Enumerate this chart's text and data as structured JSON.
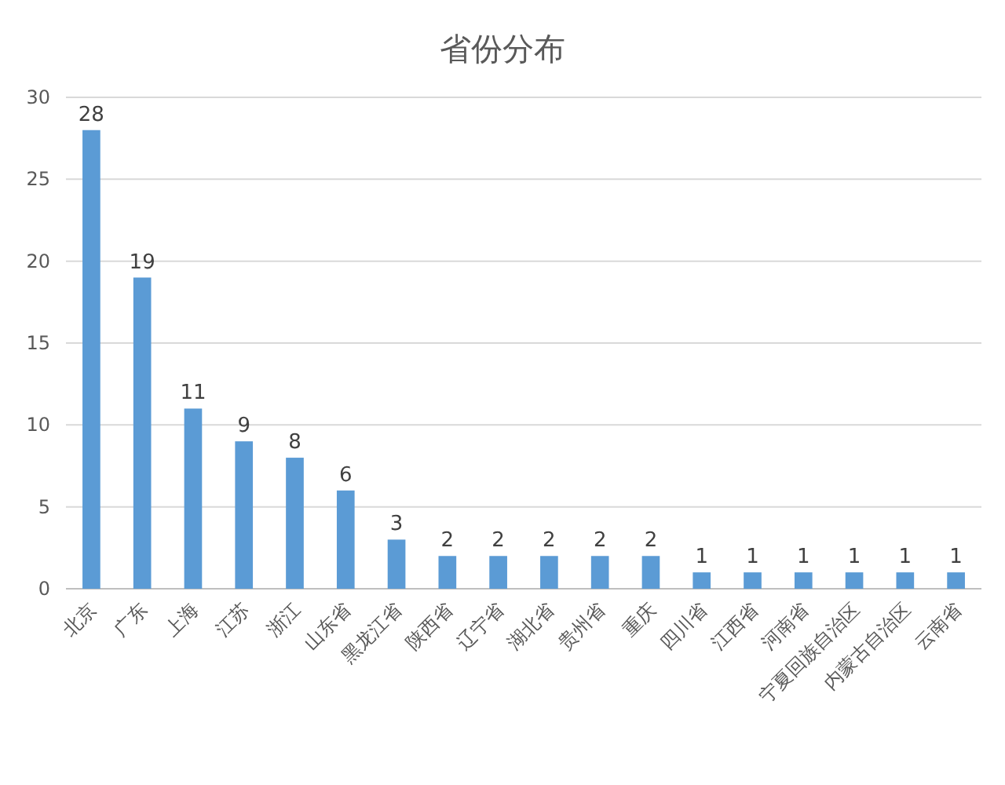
{
  "chart_data": {
    "type": "bar",
    "title": "省份分布",
    "categories": [
      "北京",
      "广东",
      "上海",
      "江苏",
      "浙江",
      "山东省",
      "黑龙江省",
      "陕西省",
      "辽宁省",
      "湖北省",
      "贵州省",
      "重庆",
      "四川省",
      "江西省",
      "河南省",
      "宁夏回族自治区",
      "内蒙古自治区",
      "云南省"
    ],
    "values": [
      28,
      19,
      11,
      9,
      8,
      6,
      3,
      2,
      2,
      2,
      2,
      2,
      1,
      1,
      1,
      1,
      1,
      1
    ],
    "color": "#5b9bd5",
    "ylim": [
      0,
      30
    ],
    "yticks": [
      0,
      5,
      10,
      15,
      20,
      25,
      30
    ],
    "grid": "y",
    "data_labels": true
  }
}
